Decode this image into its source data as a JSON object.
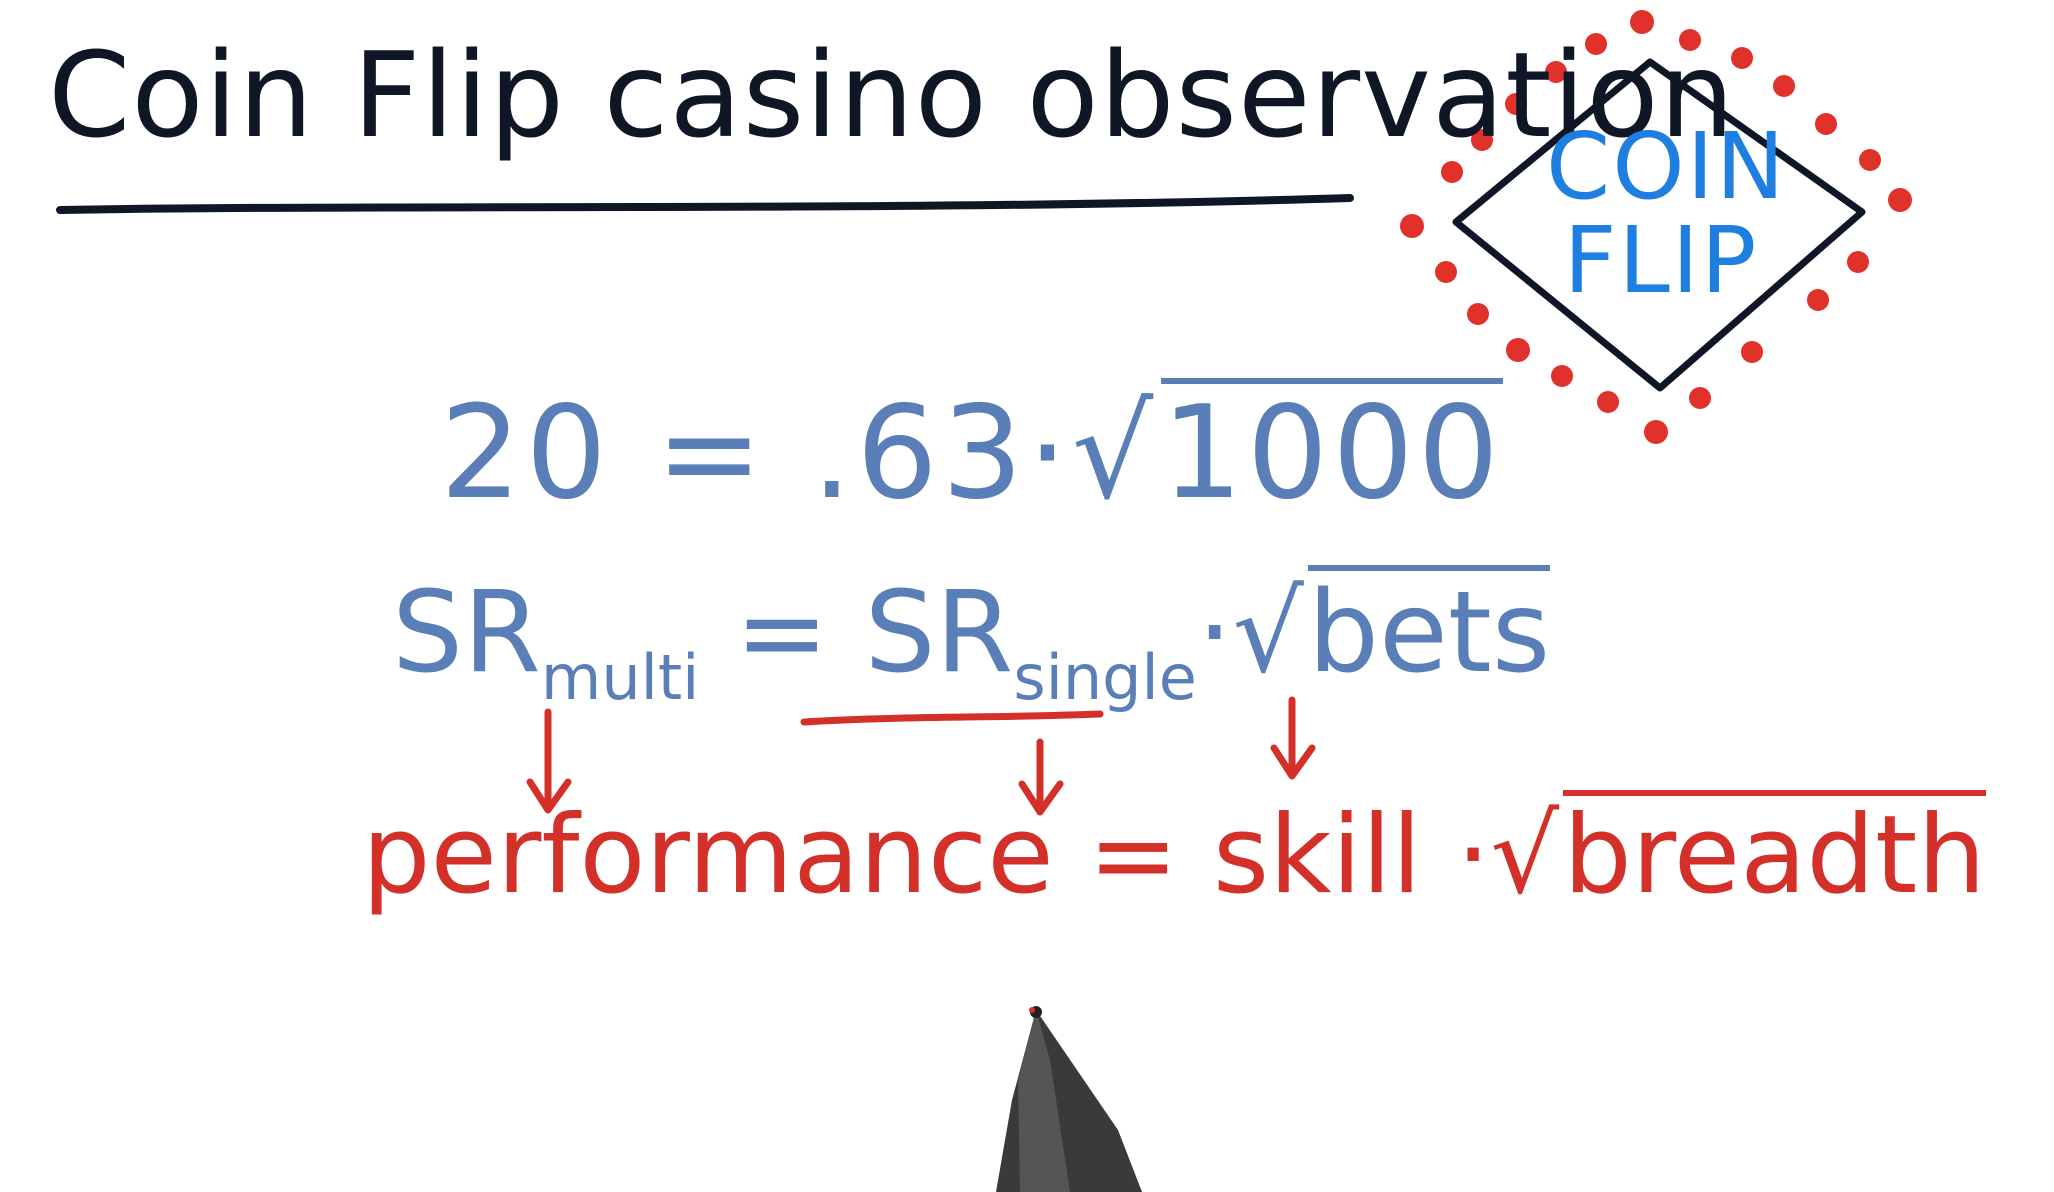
{
  "title": "Coin Flip casino observation",
  "badge": {
    "line1": "COIN",
    "line2": "FLIP",
    "border_color": "#0f1626",
    "text_color": "#1f7fe0",
    "dot_color": "#e0312b"
  },
  "equation1": {
    "lhs": "20",
    "equals": "=",
    "coef": ".63",
    "dot": "·",
    "radicand": "1000"
  },
  "equation2": {
    "sr": "SR",
    "multi": "multi",
    "equals": "=",
    "single": "single",
    "dot": "·",
    "radicand": "bets"
  },
  "equation3": {
    "performance": "performance",
    "equals": "=",
    "skill": "skill",
    "dot": "·",
    "radicand": "breadth"
  },
  "colors": {
    "ink_black": "#0f1626",
    "ink_blue": "#5a7fb8",
    "ink_red": "#d4302a"
  }
}
